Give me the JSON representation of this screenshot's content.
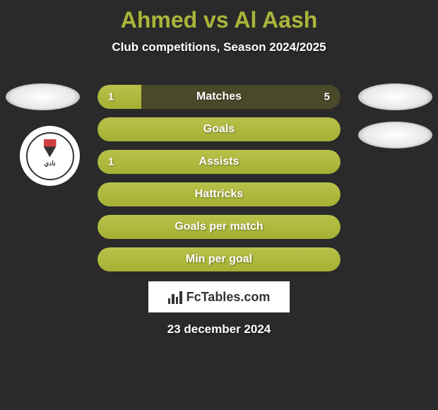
{
  "title": "Ahmed vs Al Aash",
  "subtitle": "Club competitions, Season 2024/2025",
  "colors": {
    "background": "#2a2a2a",
    "title_color": "#aab53a",
    "text_color": "#ffffff",
    "bar_fill": "#aab53a",
    "bar_bg": "#4a4a2a",
    "footer_bg": "#ffffff"
  },
  "bars": [
    {
      "label": "Matches",
      "left_value": "1",
      "right_value": "5",
      "left_width_pct": 18,
      "is_full": false
    },
    {
      "label": "Goals",
      "left_value": "",
      "right_value": "",
      "left_width_pct": 100,
      "is_full": true
    },
    {
      "label": "Assists",
      "left_value": "1",
      "right_value": "",
      "left_width_pct": 100,
      "is_full": true
    },
    {
      "label": "Hattricks",
      "left_value": "",
      "right_value": "",
      "left_width_pct": 100,
      "is_full": true
    },
    {
      "label": "Goals per match",
      "left_value": "",
      "right_value": "",
      "left_width_pct": 100,
      "is_full": true
    },
    {
      "label": "Min per goal",
      "left_value": "",
      "right_value": "",
      "left_width_pct": 100,
      "is_full": true
    }
  ],
  "footer_logo_text": "FcTables.com",
  "date": "23 december 2024"
}
